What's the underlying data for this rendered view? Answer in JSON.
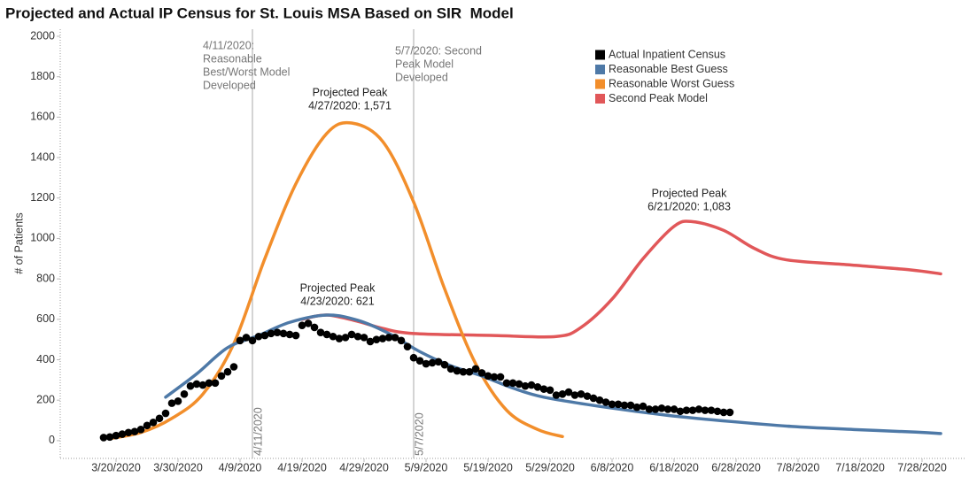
{
  "chart_data": {
    "type": "line",
    "title": "Projected and Actual IP Census for St. Louis MSA Based on SIR  Model",
    "y_label": "# of Patients",
    "xlim": [
      "2020-03-11",
      "2020-08-04"
    ],
    "xticks": [
      {
        "value": "2020-03-20",
        "label": "3/20/2020"
      },
      {
        "value": "2020-03-30",
        "label": "3/30/2020"
      },
      {
        "value": "2020-04-09",
        "label": "4/9/2020"
      },
      {
        "value": "2020-04-19",
        "label": "4/19/2020"
      },
      {
        "value": "2020-04-29",
        "label": "4/29/2020"
      },
      {
        "value": "2020-05-09",
        "label": "5/9/2020"
      },
      {
        "value": "2020-05-19",
        "label": "5/19/2020"
      },
      {
        "value": "2020-05-29",
        "label": "5/29/2020"
      },
      {
        "value": "2020-06-08",
        "label": "6/8/2020"
      },
      {
        "value": "2020-06-18",
        "label": "6/18/2020"
      },
      {
        "value": "2020-06-28",
        "label": "6/28/2020"
      },
      {
        "value": "2020-07-08",
        "label": "7/8/2020"
      },
      {
        "value": "2020-07-18",
        "label": "7/18/2020"
      },
      {
        "value": "2020-07-28",
        "label": "7/28/2020"
      }
    ],
    "ylim": [
      -88,
      2035
    ],
    "yticks": [
      0,
      200,
      400,
      600,
      800,
      1000,
      1200,
      1400,
      1600,
      1800,
      2000
    ],
    "grid": false,
    "legend": "top-right",
    "series": [
      {
        "name": "Actual Inpatient Census",
        "color": "#000000",
        "mark": "dot",
        "x": [
          "2020-03-18",
          "2020-03-19",
          "2020-03-20",
          "2020-03-21",
          "2020-03-22",
          "2020-03-23",
          "2020-03-24",
          "2020-03-25",
          "2020-03-26",
          "2020-03-27",
          "2020-03-28",
          "2020-03-29",
          "2020-03-30",
          "2020-03-31",
          "2020-04-01",
          "2020-04-02",
          "2020-04-03",
          "2020-04-04",
          "2020-04-05",
          "2020-04-06",
          "2020-04-07",
          "2020-04-08",
          "2020-04-09",
          "2020-04-10",
          "2020-04-11",
          "2020-04-12",
          "2020-04-13",
          "2020-04-14",
          "2020-04-15",
          "2020-04-16",
          "2020-04-17",
          "2020-04-18",
          "2020-04-19",
          "2020-04-20",
          "2020-04-21",
          "2020-04-22",
          "2020-04-23",
          "2020-04-24",
          "2020-04-25",
          "2020-04-26",
          "2020-04-27",
          "2020-04-28",
          "2020-04-29",
          "2020-04-30",
          "2020-05-01",
          "2020-05-02",
          "2020-05-03",
          "2020-05-04",
          "2020-05-05",
          "2020-05-06",
          "2020-05-07",
          "2020-05-08",
          "2020-05-09",
          "2020-05-10",
          "2020-05-11",
          "2020-05-12",
          "2020-05-13",
          "2020-05-14",
          "2020-05-15",
          "2020-05-16",
          "2020-05-17",
          "2020-05-18",
          "2020-05-19",
          "2020-05-20",
          "2020-05-21",
          "2020-05-22",
          "2020-05-23",
          "2020-05-24",
          "2020-05-25",
          "2020-05-26",
          "2020-05-27",
          "2020-05-28",
          "2020-05-29",
          "2020-05-30",
          "2020-05-31",
          "2020-06-01",
          "2020-06-02",
          "2020-06-03",
          "2020-06-04",
          "2020-06-05",
          "2020-06-06",
          "2020-06-07",
          "2020-06-08",
          "2020-06-09",
          "2020-06-10",
          "2020-06-11",
          "2020-06-12",
          "2020-06-13",
          "2020-06-14",
          "2020-06-15",
          "2020-06-16",
          "2020-06-17",
          "2020-06-18",
          "2020-06-19",
          "2020-06-20",
          "2020-06-21",
          "2020-06-22",
          "2020-06-23",
          "2020-06-24",
          "2020-06-25",
          "2020-06-26",
          "2020-06-27"
        ],
        "values": [
          15,
          18,
          25,
          32,
          40,
          45,
          55,
          75,
          90,
          110,
          135,
          185,
          195,
          230,
          270,
          280,
          275,
          285,
          285,
          320,
          340,
          365,
          495,
          510,
          495,
          515,
          520,
          530,
          535,
          530,
          525,
          520,
          570,
          580,
          560,
          535,
          525,
          515,
          505,
          510,
          525,
          515,
          510,
          490,
          500,
          505,
          510,
          510,
          495,
          465,
          410,
          395,
          380,
          385,
          390,
          375,
          355,
          345,
          340,
          340,
          355,
          335,
          320,
          315,
          315,
          285,
          285,
          280,
          270,
          275,
          265,
          255,
          250,
          225,
          230,
          240,
          225,
          230,
          220,
          210,
          200,
          190,
          180,
          180,
          175,
          175,
          165,
          170,
          155,
          155,
          160,
          155,
          155,
          145,
          150,
          150,
          155,
          150,
          150,
          145,
          140,
          140
        ]
      },
      {
        "name": "Reasonable Best Guess",
        "color": "#4e79a7",
        "mark": "line",
        "x": [
          "2020-03-28",
          "2020-04-02",
          "2020-04-07",
          "2020-04-12",
          "2020-04-17",
          "2020-04-23",
          "2020-04-28",
          "2020-05-03",
          "2020-05-08",
          "2020-05-13",
          "2020-05-18",
          "2020-05-23",
          "2020-05-28",
          "2020-06-07",
          "2020-06-17",
          "2020-06-27",
          "2020-07-07",
          "2020-07-17",
          "2020-07-27",
          "2020-07-31"
        ],
        "values": [
          215,
          330,
          460,
          520,
          585,
          621,
          595,
          530,
          440,
          370,
          320,
          260,
          215,
          165,
          125,
          95,
          70,
          55,
          42,
          35
        ]
      },
      {
        "name": "Reasonable Worst Guess",
        "color": "#f28e2b",
        "mark": "line",
        "x": [
          "2020-03-19",
          "2020-03-24",
          "2020-03-29",
          "2020-04-03",
          "2020-04-08",
          "2020-04-13",
          "2020-04-18",
          "2020-04-23",
          "2020-04-27",
          "2020-05-02",
          "2020-05-07",
          "2020-05-12",
          "2020-05-17",
          "2020-05-22",
          "2020-05-27",
          "2020-05-31"
        ],
        "values": [
          10,
          40,
          110,
          230,
          480,
          900,
          1270,
          1520,
          1571,
          1480,
          1180,
          750,
          380,
          150,
          55,
          20
        ]
      },
      {
        "name": "Second Peak Model",
        "color": "#e15759",
        "mark": "line",
        "x": [
          "2020-04-19",
          "2020-04-23",
          "2020-04-28",
          "2020-05-02",
          "2020-05-07",
          "2020-05-20",
          "2020-05-30",
          "2020-06-03",
          "2020-06-08",
          "2020-06-13",
          "2020-06-18",
          "2020-06-21",
          "2020-06-26",
          "2020-07-01",
          "2020-07-06",
          "2020-07-16",
          "2020-07-26",
          "2020-07-31"
        ],
        "values": [
          600,
          621,
          590,
          555,
          530,
          520,
          515,
          560,
          700,
          900,
          1060,
          1083,
          1040,
          950,
          895,
          870,
          845,
          825
        ]
      }
    ],
    "reference_lines": [
      {
        "x": "2020-04-11",
        "label": "4/11/2020",
        "note": [
          "4/11/2020:",
          "Reasonable",
          "Best/Worst Model",
          "Developed"
        ]
      },
      {
        "x": "2020-05-07",
        "label": "5/7/2020",
        "note": [
          "5/7/2020: Second",
          "Peak Model",
          "Developed"
        ]
      }
    ],
    "annotations": [
      {
        "lines": [
          "Projected Peak",
          "4/27/2020: 1,571"
        ]
      },
      {
        "lines": [
          "Projected Peak",
          "4/23/2020: 621"
        ]
      },
      {
        "lines": [
          "Projected Peak",
          "6/21/2020: 1,083"
        ]
      }
    ]
  }
}
